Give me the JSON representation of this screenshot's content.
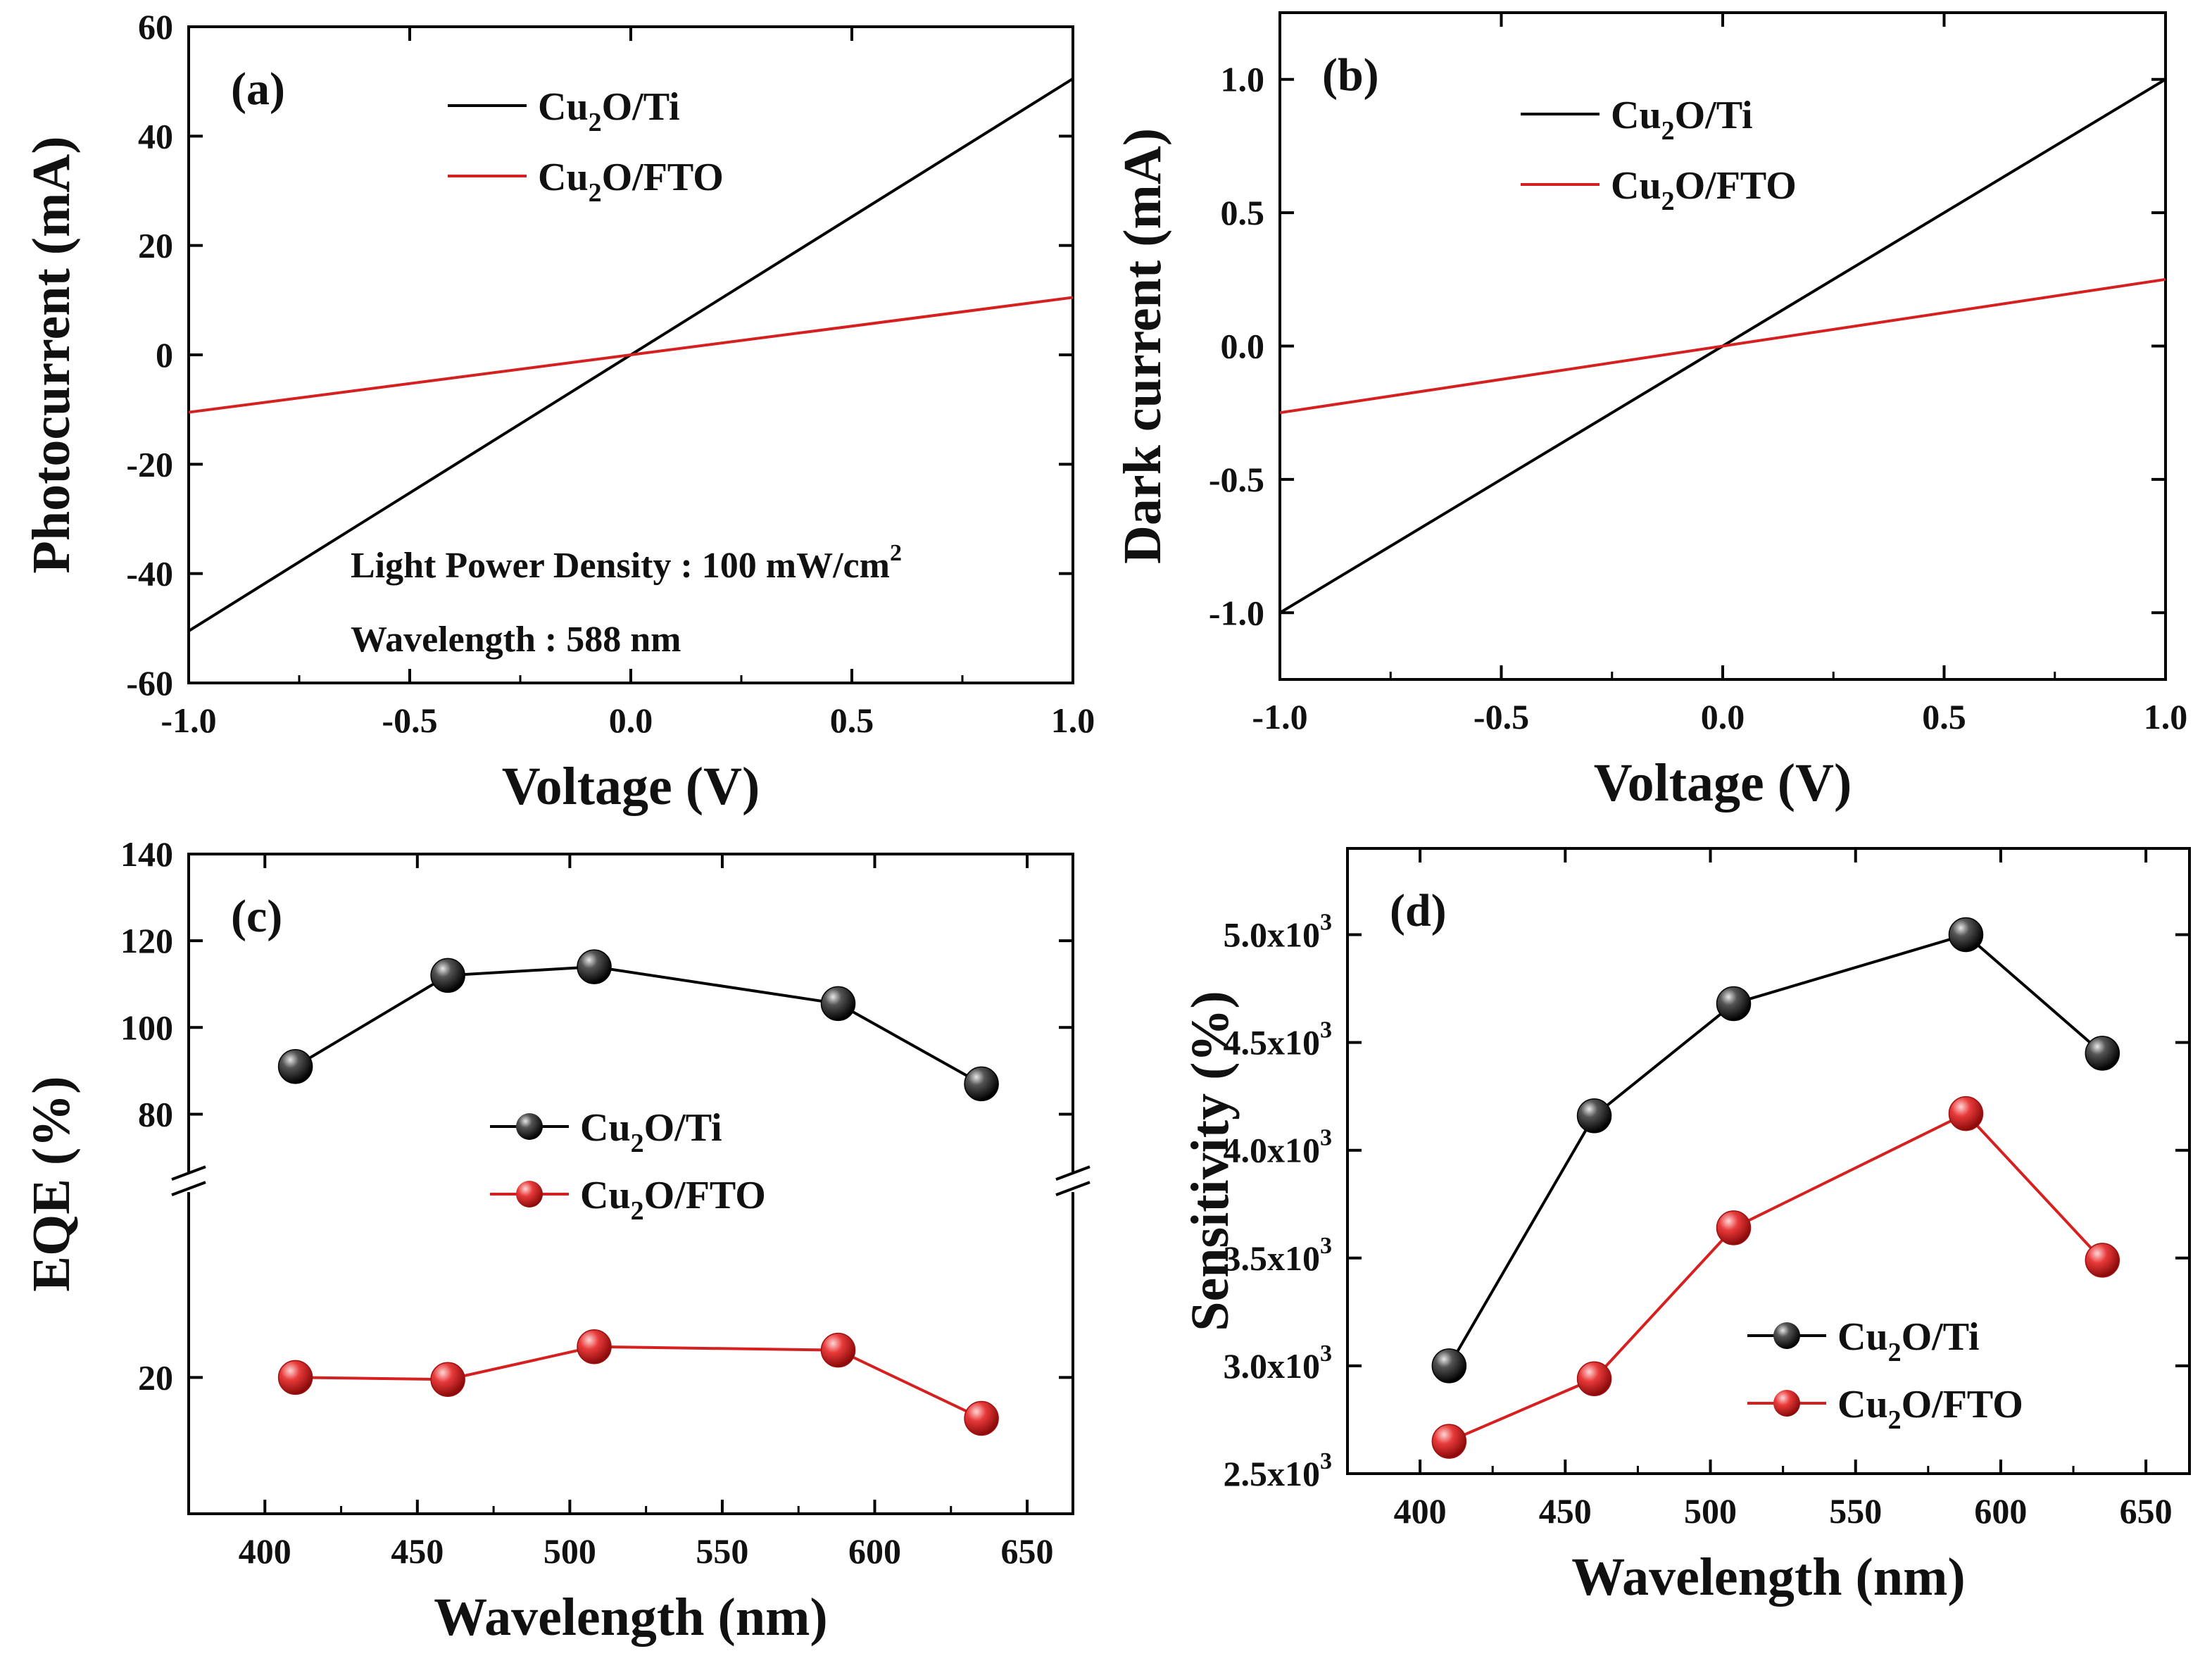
{
  "chart_data": [
    {
      "id": "a",
      "type": "line",
      "panel_label": "(a)",
      "xlabel": "Voltage (V)",
      "ylabel": "Photocurrent (mA)",
      "xlim": [
        -1.0,
        1.0
      ],
      "ylim": [
        -60,
        60
      ],
      "xticks": [
        -1.0,
        -0.5,
        0.0,
        0.5,
        1.0
      ],
      "xtick_labels": [
        "-1.0",
        "-0.5",
        "0.0",
        "0.5",
        "1.0"
      ],
      "yticks": [
        -60,
        -40,
        -20,
        0,
        20,
        40,
        60
      ],
      "ytick_labels": [
        "-60",
        "-40",
        "-20",
        "0",
        "20",
        "40",
        "60"
      ],
      "series": [
        {
          "name": "Cu2O/Ti",
          "label_main": "Cu",
          "label_sub": "2",
          "label_rest": "O/Ti",
          "color": "#000000",
          "x": [
            -1.0,
            1.0
          ],
          "y": [
            -50.5,
            50.5
          ]
        },
        {
          "name": "Cu2O/FTO",
          "label_main": "Cu",
          "label_sub": "2",
          "label_rest": "O/FTO",
          "color": "#d62020",
          "x": [
            -1.0,
            1.0
          ],
          "y": [
            -10.5,
            10.5
          ]
        }
      ],
      "annotations": [
        {
          "text": "Light Power Density : 100 mW/cm",
          "sup": "2"
        },
        {
          "text": "Wavelength : 588 nm",
          "sup": ""
        }
      ]
    },
    {
      "id": "b",
      "type": "line",
      "panel_label": "(b)",
      "xlabel": "Voltage (V)",
      "ylabel": "Dark current (mA)",
      "xlim": [
        -1.0,
        1.0
      ],
      "ylim": [
        -1.25,
        1.25
      ],
      "xticks": [
        -1.0,
        -0.5,
        0.0,
        0.5,
        1.0
      ],
      "xtick_labels": [
        "-1.0",
        "-0.5",
        "0.0",
        "0.5",
        "1.0"
      ],
      "yticks": [
        -1.0,
        -0.5,
        0.0,
        0.5,
        1.0
      ],
      "ytick_labels": [
        "-1.0",
        "-0.5",
        "0.0",
        "0.5",
        "1.0"
      ],
      "series": [
        {
          "name": "Cu2O/Ti",
          "label_main": "Cu",
          "label_sub": "2",
          "label_rest": "O/Ti",
          "color": "#000000",
          "x": [
            -1.0,
            1.0
          ],
          "y": [
            -1.0,
            1.0
          ]
        },
        {
          "name": "Cu2O/FTO",
          "label_main": "Cu",
          "label_sub": "2",
          "label_rest": "O/FTO",
          "color": "#d62020",
          "x": [
            -1.0,
            1.0
          ],
          "y": [
            -0.25,
            0.25
          ]
        }
      ]
    },
    {
      "id": "c",
      "type": "line",
      "panel_label": "(c)",
      "xlabel": "Wavelength (nm)",
      "ylabel": "EQE (%)",
      "xlim": [
        375,
        665
      ],
      "xticks": [
        400,
        450,
        500,
        550,
        600,
        650
      ],
      "xtick_labels": [
        "400",
        "450",
        "500",
        "550",
        "600",
        "650"
      ],
      "broken_axis": {
        "upper_range": [
          70,
          140
        ],
        "lower_range": [
          0,
          45
        ]
      },
      "yticks": [
        20,
        80,
        100,
        120,
        140
      ],
      "ytick_labels": [
        "20",
        "80",
        "100",
        "120",
        "140"
      ],
      "series": [
        {
          "name": "Cu2O/Ti",
          "label_main": "Cu",
          "label_sub": "2",
          "label_rest": "O/Ti",
          "color": "#000000",
          "x": [
            410,
            460,
            508,
            588,
            635
          ],
          "y": [
            91,
            112,
            114,
            105.5,
            87
          ]
        },
        {
          "name": "Cu2O/FTO",
          "label_main": "Cu",
          "label_sub": "2",
          "label_rest": "O/FTO",
          "color": "#d62020",
          "x": [
            410,
            460,
            508,
            588,
            635
          ],
          "y": [
            20,
            19.7,
            24.5,
            24,
            14
          ]
        }
      ]
    },
    {
      "id": "d",
      "type": "line",
      "panel_label": "(d)",
      "xlabel": "Wavelength (nm)",
      "ylabel": "Sensitivity (%)",
      "xlim": [
        375,
        665
      ],
      "ylim": [
        2500,
        5400
      ],
      "xticks": [
        400,
        450,
        500,
        550,
        600,
        650
      ],
      "xtick_labels": [
        "400",
        "450",
        "500",
        "550",
        "600",
        "650"
      ],
      "yticks": [
        2500,
        3000,
        3500,
        4000,
        4500,
        5000
      ],
      "ytick_labels": [
        {
          "base": "2.5x10",
          "exp": "3"
        },
        {
          "base": "3.0x10",
          "exp": "3"
        },
        {
          "base": "3.5x10",
          "exp": "3"
        },
        {
          "base": "4.0x10",
          "exp": "3"
        },
        {
          "base": "4.5x10",
          "exp": "3"
        },
        {
          "base": "5.0x10",
          "exp": "3"
        }
      ],
      "series": [
        {
          "name": "Cu2O/Ti",
          "label_main": "Cu",
          "label_sub": "2",
          "label_rest": "O/Ti",
          "color": "#000000",
          "x": [
            410,
            460,
            508,
            588,
            635
          ],
          "y": [
            3000,
            4160,
            4680,
            5000,
            4450
          ]
        },
        {
          "name": "Cu2O/FTO",
          "label_main": "Cu",
          "label_sub": "2",
          "label_rest": "O/FTO",
          "color": "#d62020",
          "x": [
            410,
            460,
            508,
            588,
            635
          ],
          "y": [
            2650,
            2940,
            3640,
            4170,
            3490
          ]
        }
      ]
    }
  ]
}
